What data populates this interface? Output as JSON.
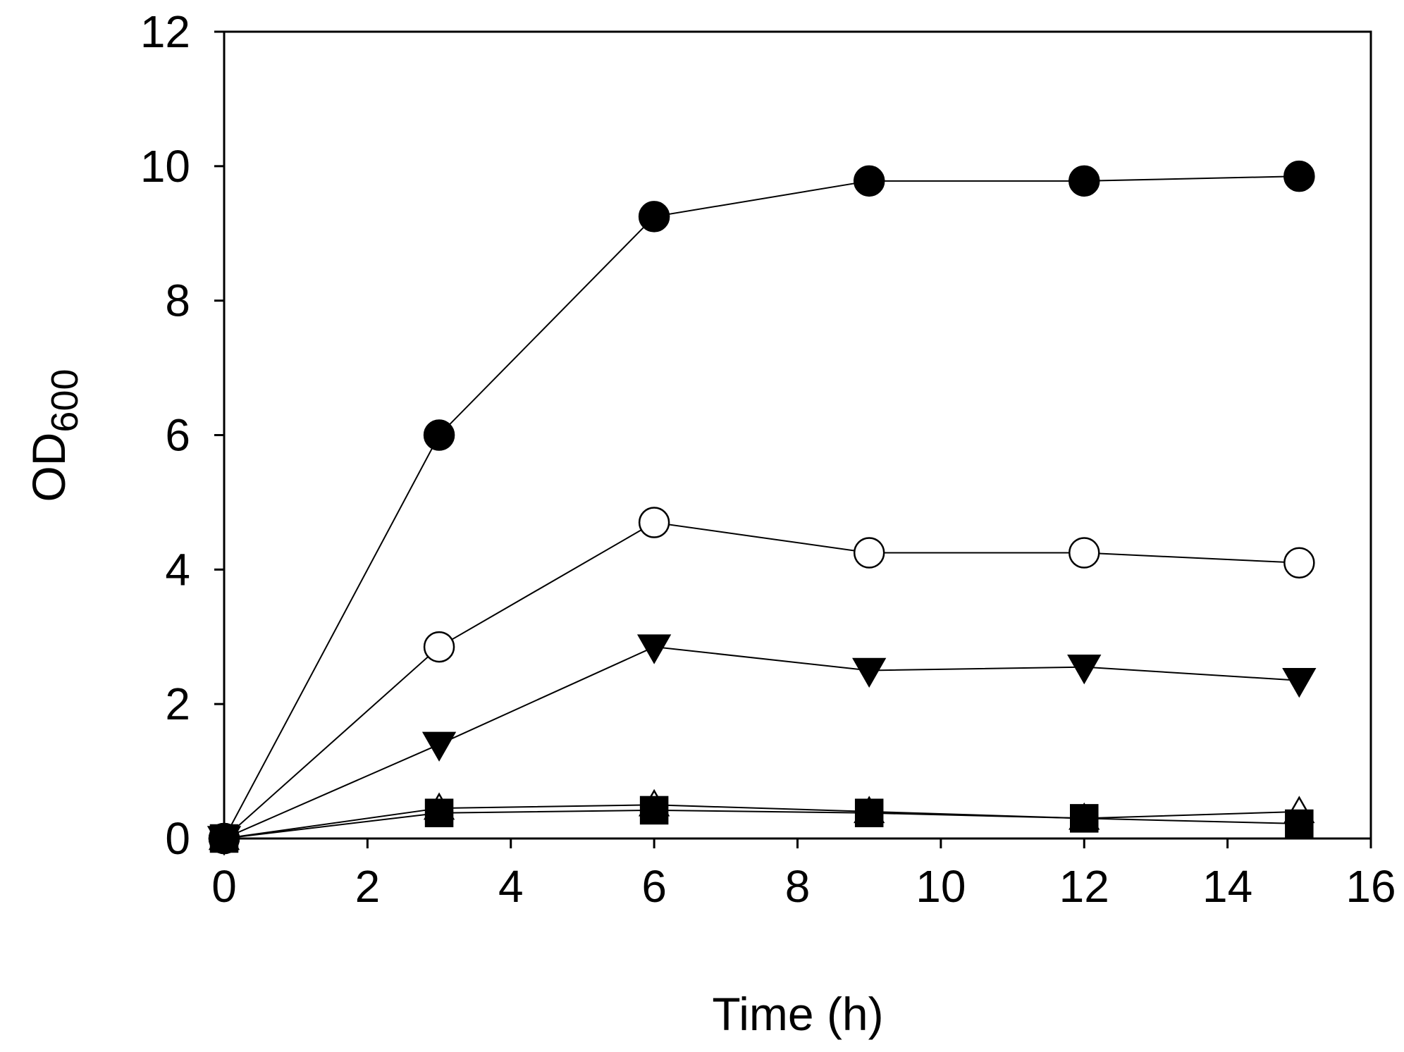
{
  "chart_data": {
    "type": "line",
    "title": "",
    "xlabel": "Time (h)",
    "ylabel": {
      "main": "OD",
      "subscript": "600"
    },
    "xlim": [
      0,
      16
    ],
    "ylim": [
      0,
      12
    ],
    "xticks": [
      0,
      2,
      4,
      6,
      8,
      10,
      12,
      14,
      16
    ],
    "yticks": [
      0,
      2,
      4,
      6,
      8,
      10,
      12
    ],
    "grid": false,
    "legend": "none",
    "x": [
      0,
      3,
      6,
      9,
      12,
      15
    ],
    "series": [
      {
        "name": "filled circle",
        "marker": "circle",
        "fill": "#000000",
        "values": [
          0.0,
          6.0,
          9.25,
          9.78,
          9.78,
          9.85
        ]
      },
      {
        "name": "open circle",
        "marker": "circle",
        "fill": "#ffffff",
        "values": [
          0.0,
          2.85,
          4.7,
          4.25,
          4.25,
          4.1
        ]
      },
      {
        "name": "filled triangle down",
        "marker": "triangle-down",
        "fill": "#000000",
        "values": [
          0.0,
          1.4,
          2.85,
          2.5,
          2.55,
          2.35
        ]
      },
      {
        "name": "open triangle up",
        "marker": "triangle-up",
        "fill": "#ffffff",
        "values": [
          0.0,
          0.45,
          0.5,
          0.4,
          0.3,
          0.4
        ]
      },
      {
        "name": "filled square",
        "marker": "square",
        "fill": "#000000",
        "values": [
          0.0,
          0.38,
          0.42,
          0.38,
          0.3,
          0.22
        ]
      }
    ]
  }
}
